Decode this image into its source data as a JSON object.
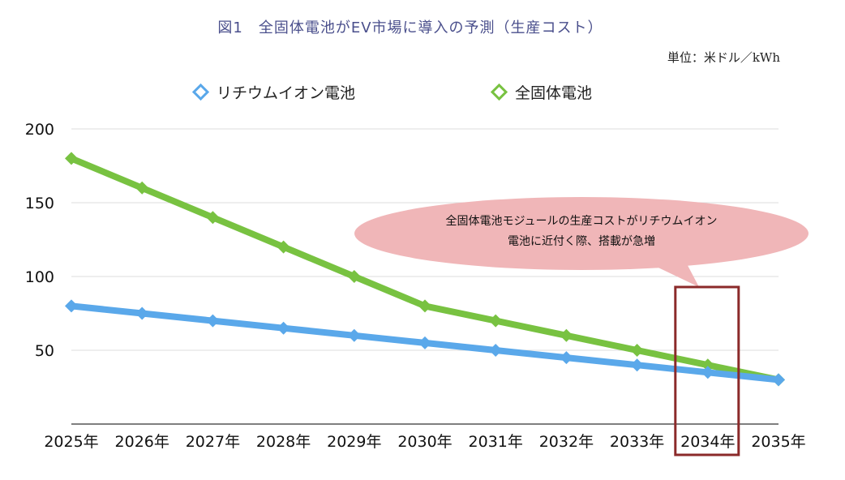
{
  "colors": {
    "li_ion": "#5aa8ea",
    "solid_state": "#78c241",
    "callout_fill": "#f0b6b8",
    "highlight_box": "#8b2a2a",
    "grid": "#dddddd"
  },
  "chart_data": {
    "type": "line",
    "title": "図1　全固体電池がEV市場に導入の予測（生産コスト）",
    "unit": "単位：米ドル／kWh",
    "categories": [
      "2025年",
      "2026年",
      "2027年",
      "2028年",
      "2029年",
      "2030年",
      "2031年",
      "2032年",
      "2033年",
      "2034年",
      "2035年"
    ],
    "series": [
      {
        "name": "リチウムイオン電池",
        "values": [
          80,
          75,
          70,
          65,
          60,
          55,
          50,
          45,
          40,
          35,
          30
        ]
      },
      {
        "name": "全固体電池",
        "values": [
          180,
          160,
          140,
          120,
          100,
          80,
          70,
          60,
          50,
          40,
          30
        ]
      }
    ],
    "yticks": [
      "50",
      "100",
      "150",
      "200"
    ],
    "ylim": [
      0,
      200
    ],
    "grid": true,
    "legend_position": "top",
    "annotation": {
      "lines": [
        "全固体電池モジュールの生産コストがリチウムイオン",
        "電池に近付く際、搭載が急増"
      ],
      "highlight_category": "2034年"
    }
  }
}
